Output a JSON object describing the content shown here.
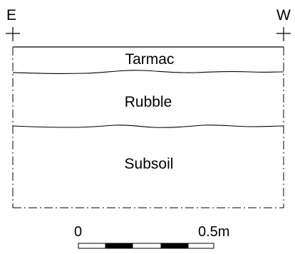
{
  "section": {
    "left_direction": "E",
    "right_direction": "W",
    "layers": [
      {
        "label": "Tarmac"
      },
      {
        "label": "Rubble"
      },
      {
        "label": "Subsoil"
      }
    ]
  },
  "scale_bar": {
    "start_label": "0",
    "end_label": "0.5m",
    "segment_colors": [
      "#ffffff",
      "#000000",
      "#ffffff",
      "#000000",
      "#ffffff"
    ]
  }
}
